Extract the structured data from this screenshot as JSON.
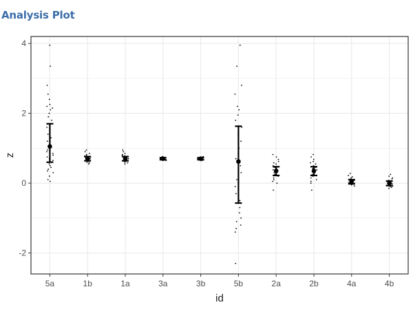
{
  "header": {
    "title": "Analysis Plot"
  },
  "chart_data": {
    "type": "scatter",
    "title": "",
    "xlabel": "id",
    "ylabel": "z",
    "ylim": [
      -2.6,
      4.2
    ],
    "yticks": [
      -2,
      0,
      2,
      4
    ],
    "grid": true,
    "categories": [
      "5a",
      "1b",
      "1a",
      "3a",
      "3b",
      "5b",
      "2a",
      "2b",
      "4a",
      "4b"
    ],
    "summary": [
      {
        "id": "5a",
        "mean": 1.05,
        "lower": 0.6,
        "upper": 1.7
      },
      {
        "id": "1b",
        "mean": 0.7,
        "lower": 0.64,
        "upper": 0.76
      },
      {
        "id": "1a",
        "mean": 0.7,
        "lower": 0.64,
        "upper": 0.76
      },
      {
        "id": "3a",
        "mean": 0.7,
        "lower": 0.67,
        "upper": 0.73
      },
      {
        "id": "3b",
        "mean": 0.7,
        "lower": 0.67,
        "upper": 0.73
      },
      {
        "id": "5b",
        "mean": 0.62,
        "lower": -0.57,
        "upper": 1.63
      },
      {
        "id": "2a",
        "mean": 0.35,
        "lower": 0.22,
        "upper": 0.47
      },
      {
        "id": "2b",
        "mean": 0.35,
        "lower": 0.22,
        "upper": 0.47
      },
      {
        "id": "4a",
        "mean": 0.05,
        "lower": -0.02,
        "upper": 0.1
      },
      {
        "id": "4b",
        "mean": 0.0,
        "lower": -0.07,
        "upper": 0.06
      }
    ],
    "points": {
      "5a": [
        3.95,
        3.35,
        2.8,
        2.55,
        2.4,
        2.25,
        2.2,
        2.15,
        2.1,
        2.0,
        1.9,
        1.8,
        1.7,
        1.6,
        1.5,
        1.4,
        1.3,
        1.2,
        1.1,
        1.0,
        0.95,
        0.9,
        0.85,
        0.8,
        0.75,
        0.7,
        0.65,
        0.6,
        0.55,
        0.5,
        0.45,
        0.4,
        0.35,
        0.3,
        0.2,
        0.1,
        0.05
      ],
      "1b": [
        0.95,
        0.9,
        0.85,
        0.82,
        0.8,
        0.78,
        0.75,
        0.72,
        0.7,
        0.68,
        0.65,
        0.62,
        0.6,
        0.58,
        0.55
      ],
      "1a": [
        0.95,
        0.9,
        0.85,
        0.82,
        0.8,
        0.78,
        0.75,
        0.72,
        0.7,
        0.68,
        0.65,
        0.62,
        0.6,
        0.58,
        0.55
      ],
      "3a": [
        0.76,
        0.74,
        0.72,
        0.71,
        0.7,
        0.69,
        0.68,
        0.67,
        0.66,
        0.65
      ],
      "3b": [
        0.76,
        0.74,
        0.72,
        0.71,
        0.7,
        0.69,
        0.68,
        0.67,
        0.66,
        0.65
      ],
      "5b": [
        3.95,
        3.35,
        2.8,
        2.55,
        2.2,
        2.1,
        1.95,
        1.8,
        1.6,
        1.4,
        1.2,
        1.0,
        0.85,
        0.7,
        0.5,
        0.3,
        0.1,
        -0.1,
        -0.3,
        -0.5,
        -0.7,
        -0.85,
        -1.0,
        -1.1,
        -1.2,
        -1.3,
        -1.4,
        -2.3
      ],
      "2a": [
        0.82,
        0.75,
        0.68,
        0.62,
        0.58,
        0.55,
        0.5,
        0.45,
        0.42,
        0.38,
        0.35,
        0.3,
        0.25,
        0.2,
        0.15,
        0.1,
        0.05,
        0.0,
        -0.2
      ],
      "2b": [
        0.82,
        0.75,
        0.68,
        0.62,
        0.58,
        0.55,
        0.5,
        0.45,
        0.42,
        0.38,
        0.35,
        0.3,
        0.25,
        0.2,
        0.15,
        0.1,
        0.05,
        0.0,
        -0.2
      ],
      "4a": [
        0.28,
        0.22,
        0.18,
        0.15,
        0.12,
        0.1,
        0.08,
        0.06,
        0.04,
        0.02,
        0.0,
        -0.02,
        -0.05,
        -0.08
      ],
      "4b": [
        0.25,
        0.2,
        0.15,
        0.12,
        0.08,
        0.05,
        0.02,
        0.0,
        -0.02,
        -0.05,
        -0.08,
        -0.1,
        -0.12,
        -0.15
      ]
    },
    "colors": {
      "panel_border": "#333333",
      "grid": "#ebebeb",
      "points": "#000000",
      "tick_label": "#4d4d4d"
    }
  }
}
